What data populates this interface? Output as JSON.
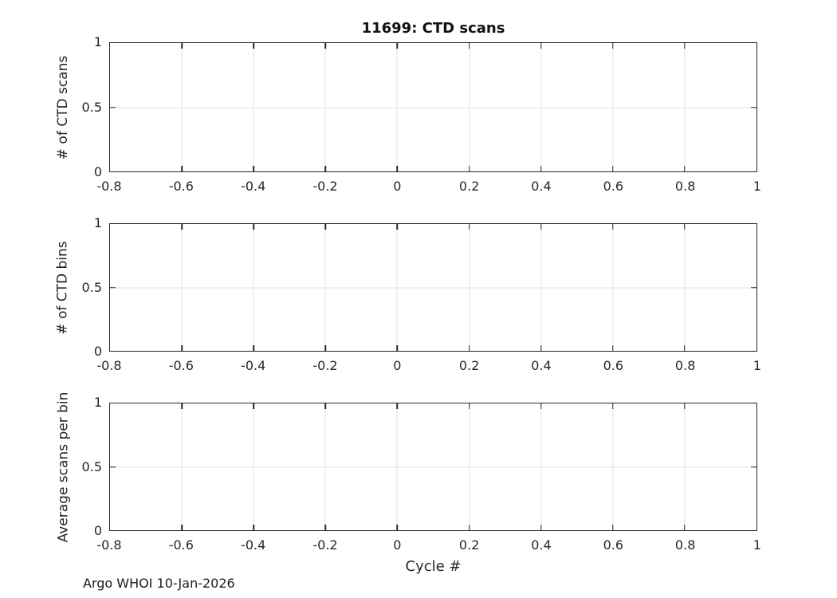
{
  "figure": {
    "title": "11699: CTD scans",
    "xlabel": "Cycle #",
    "footer": "Argo WHOI 10-Jan-2026",
    "colors": {
      "axis": "#262626",
      "grid": "#e0e0e0",
      "text": "#262626",
      "background": "#ffffff"
    }
  },
  "chart_data": [
    {
      "type": "line",
      "title": "11699: CTD scans",
      "ylabel": "# of CTD scans",
      "xlabel": "",
      "xlim": [
        -0.8,
        1
      ],
      "ylim": [
        0,
        1
      ],
      "x_ticks": [
        -0.8,
        -0.6,
        -0.4,
        -0.2,
        0,
        0.2,
        0.4,
        0.6,
        0.8,
        1
      ],
      "x_tick_labels": [
        "-0.8",
        "-0.6",
        "-0.4",
        "-0.2",
        "0",
        "0.2",
        "0.4",
        "0.6",
        "0.8",
        "1"
      ],
      "y_ticks": [
        0,
        0.5,
        1
      ],
      "y_tick_labels": [
        "0",
        "0.5",
        "1"
      ],
      "grid": true,
      "box": true,
      "series": []
    },
    {
      "type": "line",
      "title": "",
      "ylabel": "# of CTD bins",
      "xlabel": "",
      "xlim": [
        -0.8,
        1
      ],
      "ylim": [
        0,
        1
      ],
      "x_ticks": [
        -0.8,
        -0.6,
        -0.4,
        -0.2,
        0,
        0.2,
        0.4,
        0.6,
        0.8,
        1
      ],
      "x_tick_labels": [
        "-0.8",
        "-0.6",
        "-0.4",
        "-0.2",
        "0",
        "0.2",
        "0.4",
        "0.6",
        "0.8",
        "1"
      ],
      "y_ticks": [
        0,
        0.5,
        1
      ],
      "y_tick_labels": [
        "0",
        "0.5",
        "1"
      ],
      "grid": true,
      "box": true,
      "series": []
    },
    {
      "type": "line",
      "title": "",
      "ylabel": "Average scans per bin",
      "xlabel": "Cycle #",
      "xlim": [
        -0.8,
        1
      ],
      "ylim": [
        0,
        1
      ],
      "x_ticks": [
        -0.8,
        -0.6,
        -0.4,
        -0.2,
        0,
        0.2,
        0.4,
        0.6,
        0.8,
        1
      ],
      "x_tick_labels": [
        "-0.8",
        "-0.6",
        "-0.4",
        "-0.2",
        "0",
        "0.2",
        "0.4",
        "0.6",
        "0.8",
        "1"
      ],
      "y_ticks": [
        0,
        0.5,
        1
      ],
      "y_tick_labels": [
        "0",
        "0.5",
        "1"
      ],
      "grid": true,
      "box": true,
      "series": []
    }
  ]
}
